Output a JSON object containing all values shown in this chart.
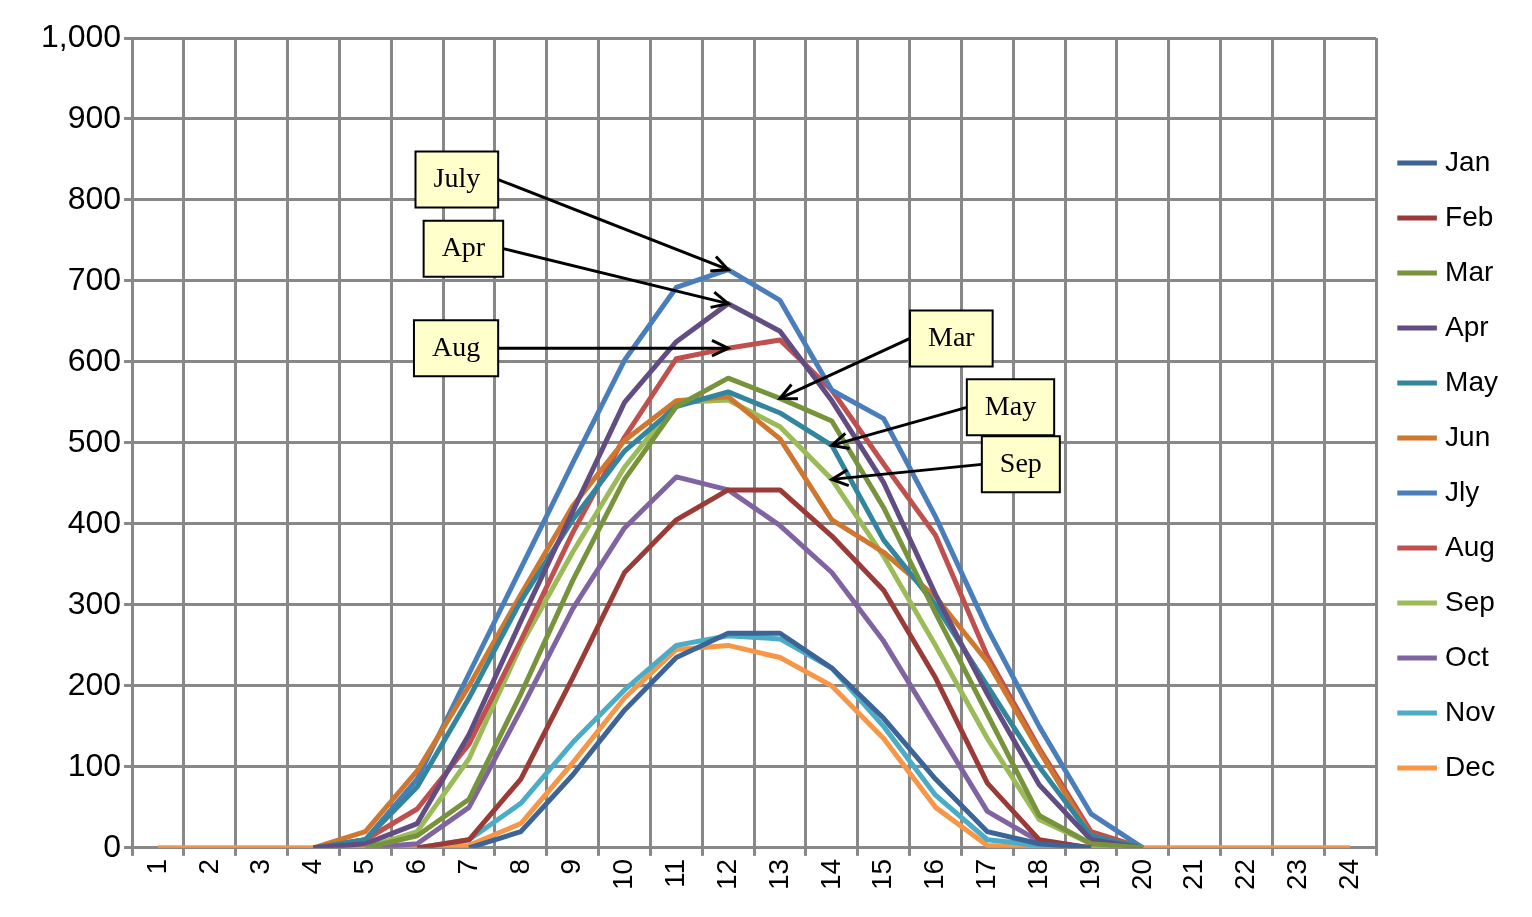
{
  "chart_data": {
    "type": "line",
    "categories": [
      "1",
      "2",
      "3",
      "4",
      "5",
      "6",
      "7",
      "8",
      "9",
      "10",
      "11",
      "12",
      "13",
      "14",
      "15",
      "16",
      "17",
      "18",
      "19",
      "20",
      "21",
      "22",
      "23",
      "24"
    ],
    "ylim": [
      0,
      1000
    ],
    "yticks": [
      0,
      100,
      200,
      300,
      400,
      500,
      600,
      700,
      800,
      900,
      {
        "value": 1000,
        "label": "1,000"
      }
    ],
    "grid": true,
    "legend": "right",
    "line_style": "solid",
    "series": [
      {
        "name": "Jan",
        "color": "#3c6496",
        "values": [
          null,
          null,
          null,
          null,
          null,
          null,
          0,
          20,
          90,
          170,
          235,
          265,
          265,
          222,
          160,
          85,
          20,
          5,
          0,
          null,
          null,
          null,
          null,
          null
        ]
      },
      {
        "name": "Feb",
        "color": "#9b3b38",
        "values": [
          null,
          null,
          null,
          null,
          null,
          0,
          10,
          85,
          210,
          340,
          405,
          442,
          442,
          385,
          318,
          210,
          80,
          10,
          0,
          null,
          null,
          null,
          null,
          null
        ]
      },
      {
        "name": "Mar",
        "color": "#77933c",
        "values": [
          null,
          null,
          null,
          null,
          0,
          15,
          60,
          190,
          330,
          455,
          545,
          580,
          555,
          527,
          420,
          290,
          165,
          40,
          5,
          0,
          null,
          null,
          null,
          null
        ]
      },
      {
        "name": "Apr",
        "color": "#624d82",
        "values": [
          null,
          null,
          null,
          0,
          5,
          30,
          140,
          280,
          415,
          550,
          625,
          672,
          638,
          552,
          451,
          313,
          190,
          78,
          10,
          0,
          null,
          null,
          null,
          null
        ]
      },
      {
        "name": "May",
        "color": "#31859c",
        "values": [
          null,
          null,
          null,
          0,
          10,
          75,
          185,
          305,
          405,
          490,
          545,
          563,
          537,
          497,
          380,
          300,
          200,
          100,
          15,
          0,
          null,
          null,
          null,
          null
        ]
      },
      {
        "name": "Jun",
        "color": "#d0772f",
        "values": [
          null,
          null,
          null,
          0,
          20,
          95,
          200,
          313,
          422,
          503,
          552,
          557,
          505,
          405,
          365,
          310,
          230,
          120,
          15,
          0,
          null,
          null,
          null,
          null
        ]
      },
      {
        "name": "Jly",
        "color": "#4a7ebb",
        "values": [
          null,
          null,
          null,
          0,
          10,
          85,
          215,
          345,
          475,
          602,
          692,
          714,
          676,
          565,
          530,
          409,
          271,
          150,
          42,
          0,
          null,
          null,
          null,
          null
        ]
      },
      {
        "name": "Aug",
        "color": "#c0504d",
        "values": [
          null,
          null,
          null,
          0,
          10,
          48,
          128,
          256,
          389,
          507,
          604,
          617,
          627,
          565,
          474,
          386,
          237,
          123,
          20,
          0,
          null,
          null,
          null,
          null
        ]
      },
      {
        "name": "Sep",
        "color": "#9bbb59",
        "values": [
          null,
          null,
          null,
          null,
          0,
          20,
          110,
          250,
          365,
          470,
          550,
          553,
          520,
          455,
          360,
          250,
          135,
          35,
          5,
          0,
          null,
          null,
          null,
          null
        ]
      },
      {
        "name": "Oct",
        "color": "#8064a2",
        "values": [
          null,
          null,
          null,
          null,
          0,
          5,
          50,
          170,
          295,
          395,
          458,
          442,
          398,
          340,
          255,
          150,
          45,
          8,
          0,
          null,
          null,
          null,
          null,
          null
        ]
      },
      {
        "name": "Nov",
        "color": "#4bacc6",
        "values": [
          null,
          null,
          null,
          null,
          null,
          0,
          10,
          55,
          130,
          195,
          250,
          262,
          258,
          222,
          150,
          65,
          10,
          3,
          0,
          null,
          null,
          null,
          null,
          null
        ]
      },
      {
        "name": "Dec",
        "color": "#f79646",
        "values": [
          0,
          0,
          0,
          0,
          0,
          0,
          3,
          30,
          105,
          185,
          245,
          250,
          235,
          200,
          135,
          50,
          3,
          0,
          0,
          0,
          0,
          0,
          0,
          0
        ]
      }
    ],
    "annotations": [
      {
        "text": "July",
        "x": "12",
        "y": 714
      },
      {
        "text": "Apr",
        "x": "12",
        "y": 672
      },
      {
        "text": "Aug",
        "x": "12",
        "y": 617
      },
      {
        "text": "Mar",
        "x": "13",
        "y": 555
      },
      {
        "text": "May",
        "x": "14",
        "y": 497
      },
      {
        "text": "Sep",
        "x": "14",
        "y": 455
      }
    ]
  }
}
